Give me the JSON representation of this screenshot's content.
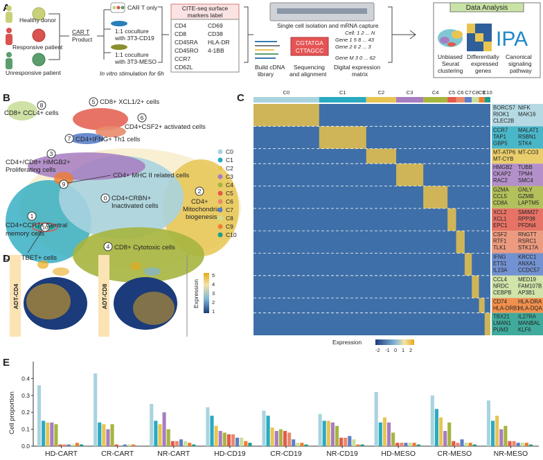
{
  "panelA": {
    "letter": "A",
    "donors": [
      "Healthy donor",
      "Responsive patient",
      "Unresponsive patient"
    ],
    "donor_colors": [
      "#c8d17a",
      "#d9534f",
      "#5b9e6e"
    ],
    "cart_product": [
      "CAR T",
      "Product"
    ],
    "conditions": [
      "CAR T only",
      "1:1 coculture",
      "with 3T3-CD19",
      "1:1 coculture",
      "with 3T3-MESO"
    ],
    "stim": "In vitro stimulation for 6h",
    "cite_title": [
      "CITE-seq surface",
      "markers label"
    ],
    "markers_left": [
      "CD4",
      "CD8",
      "CD45RA",
      "CD45RO",
      "CCR7",
      "CD62L"
    ],
    "markers_right": [
      "CD69",
      "CD38",
      "HLA-DR",
      "4-1BB"
    ],
    "capture": "Single cell isolation and mRNA capture",
    "steps": [
      "Build cDNA",
      "library",
      "Sequencing",
      "and alignment",
      "Digital expression",
      "matrix"
    ],
    "seq": [
      "CGTATGA",
      "CTTAGCC"
    ],
    "matrix_rows": [
      "Cell: 1 2 ... N",
      "Gene 1  5 8 ... 43",
      "Gene 2  6 2 ... 3",
      "Gene M  3 0 ... 62"
    ],
    "analysis_title": "Data Analysis",
    "analysis": [
      "Unbiased",
      "Seurat",
      "clustering",
      "Differentially",
      "expressed",
      "genes",
      "Canonical",
      "signaling",
      "pathway"
    ],
    "ipa": "IPA"
  },
  "panelB": {
    "letter": "B",
    "labels": [
      "CD8+ XCL1/2+ cells",
      "CD8+ CCL4+ cells",
      "CD4+CSF2+ activated cells",
      "CD4+IFNG+ Th1 cells",
      "CD4+/CD8+ HMGB2+",
      "Proliferating cells",
      "CD4+ MHC II related cells",
      "CD4+CRBN+",
      "Inactivated cells",
      "CD4+",
      "Mitochondrial",
      "biogenesis",
      "CD4+CCR7+ Central",
      "memory cells",
      "CD4+TBET+ cells",
      "CD8+ Cytotoxic cells"
    ],
    "numbers": [
      "5",
      "8",
      "6",
      "7",
      "3",
      "9",
      "0",
      "2",
      "1",
      "10",
      "4"
    ],
    "legend": [
      "C0",
      "C1",
      "C2",
      "C3",
      "C4",
      "C5",
      "C6",
      "C7",
      "C8",
      "C9",
      "C10"
    ],
    "colors": [
      "#a9d3df",
      "#2aaac0",
      "#e8c552",
      "#a77dc1",
      "#a6b53f",
      "#e35a4b",
      "#e98a6a",
      "#5b7fc9",
      "#c9df9b",
      "#ef7d2f",
      "#1f9c8c"
    ]
  },
  "panelC": {
    "letter": "C",
    "clusters": [
      "C0",
      "C1",
      "C2",
      "C3",
      "C4",
      "C5",
      "C6",
      "C7",
      "C8",
      "C9",
      "C10"
    ],
    "gene_blocks": [
      [
        "BORCS7",
        "NIFK",
        "RIOK1",
        "MAK16",
        "CLEC2B"
      ],
      [
        "CCR7",
        "MALAT1",
        "TAP1",
        "RSBN1",
        "GBP5",
        "STK4"
      ],
      [
        "MT-ATP6",
        "MT-CO3",
        "MT-CYB"
      ],
      [
        "HMGB2",
        "TUBB",
        "CKAP2",
        "TPM4",
        "RAC2",
        "SMC4"
      ],
      [
        "GZMA",
        "GNLY",
        "CCL5",
        "GZMB",
        "CD8A",
        "LAPTM5"
      ],
      [
        "XCL2",
        "SMIM27",
        "XCL1",
        "RPP38",
        "EPC1",
        "PFDN4"
      ],
      [
        "CSF2",
        "RNGTT",
        "RTF1",
        "RSRC1",
        "TLK1",
        "STK17A"
      ],
      [
        "IFNG",
        "KRCC1",
        "ETS1",
        "ANXA1",
        "IL23A",
        "CCDC57"
      ],
      [
        "CCL4",
        "MED19",
        "NRDC",
        "FAM107B",
        "CEBPB",
        "AP3B1"
      ],
      [
        "CD74",
        "HLA-DRA",
        "HLA-DRB1",
        "HLA-DQA1"
      ],
      [
        "TBX21",
        "IL27RA",
        "LMAN1",
        "MANBAL",
        "PUM3",
        "KLF6"
      ]
    ],
    "legend_title": "Expression",
    "legend_ticks": [
      "-2",
      "-1",
      "0",
      "1",
      "2"
    ]
  },
  "panelD": {
    "letter": "D",
    "maps": [
      "ADT-CD4",
      "ADT-CD8"
    ],
    "legend_title": "Expression",
    "legend_ticks": [
      "5",
      "4",
      "3",
      "2",
      "1"
    ]
  },
  "chart_data": {
    "type": "bar",
    "panel": "E",
    "ylabel": "Cell proportion",
    "ylim": [
      0,
      0.5
    ],
    "yticks": [
      "0.0",
      "0.1",
      "0.2",
      "0.3",
      "0.4"
    ],
    "categories": [
      "HD-CART",
      "CR-CART",
      "NR-CART",
      "HD-CD19",
      "CR-CD19",
      "NR-CD19",
      "HD-MESO",
      "CR-MESO",
      "NR-MESO"
    ],
    "series": [
      {
        "name": "C0",
        "values": [
          0.36,
          0.43,
          0.25,
          0.23,
          0.21,
          0.19,
          0.32,
          0.3,
          0.27
        ]
      },
      {
        "name": "C1",
        "values": [
          0.15,
          0.14,
          0.15,
          0.18,
          0.18,
          0.15,
          0.14,
          0.22,
          0.15
        ]
      },
      {
        "name": "C2",
        "values": [
          0.14,
          0.13,
          0.13,
          0.12,
          0.11,
          0.15,
          0.17,
          0.17,
          0.18
        ]
      },
      {
        "name": "C3",
        "values": [
          0.14,
          0.1,
          0.2,
          0.09,
          0.09,
          0.14,
          0.14,
          0.09,
          0.1
        ]
      },
      {
        "name": "C4",
        "values": [
          0.13,
          0.13,
          0.1,
          0.08,
          0.1,
          0.12,
          0.08,
          0.14,
          0.12
        ]
      },
      {
        "name": "C5",
        "values": [
          0.01,
          0.01,
          0.03,
          0.07,
          0.09,
          0.05,
          0.02,
          0.03,
          0.03
        ]
      },
      {
        "name": "C6",
        "values": [
          0.01,
          0.0,
          0.03,
          0.07,
          0.08,
          0.05,
          0.02,
          0.02,
          0.03
        ]
      },
      {
        "name": "C7",
        "values": [
          0.01,
          0.01,
          0.04,
          0.05,
          0.04,
          0.06,
          0.02,
          0.04,
          0.02
        ]
      },
      {
        "name": "C8",
        "values": [
          0.01,
          0.01,
          0.03,
          0.05,
          0.02,
          0.04,
          0.02,
          0.02,
          0.02
        ]
      },
      {
        "name": "C9",
        "values": [
          0.02,
          0.01,
          0.02,
          0.03,
          0.02,
          0.01,
          0.02,
          0.02,
          0.02
        ]
      },
      {
        "name": "C10",
        "values": [
          0.01,
          0.0,
          0.01,
          0.02,
          0.01,
          0.01,
          0.01,
          0.01,
          0.01
        ]
      }
    ]
  }
}
